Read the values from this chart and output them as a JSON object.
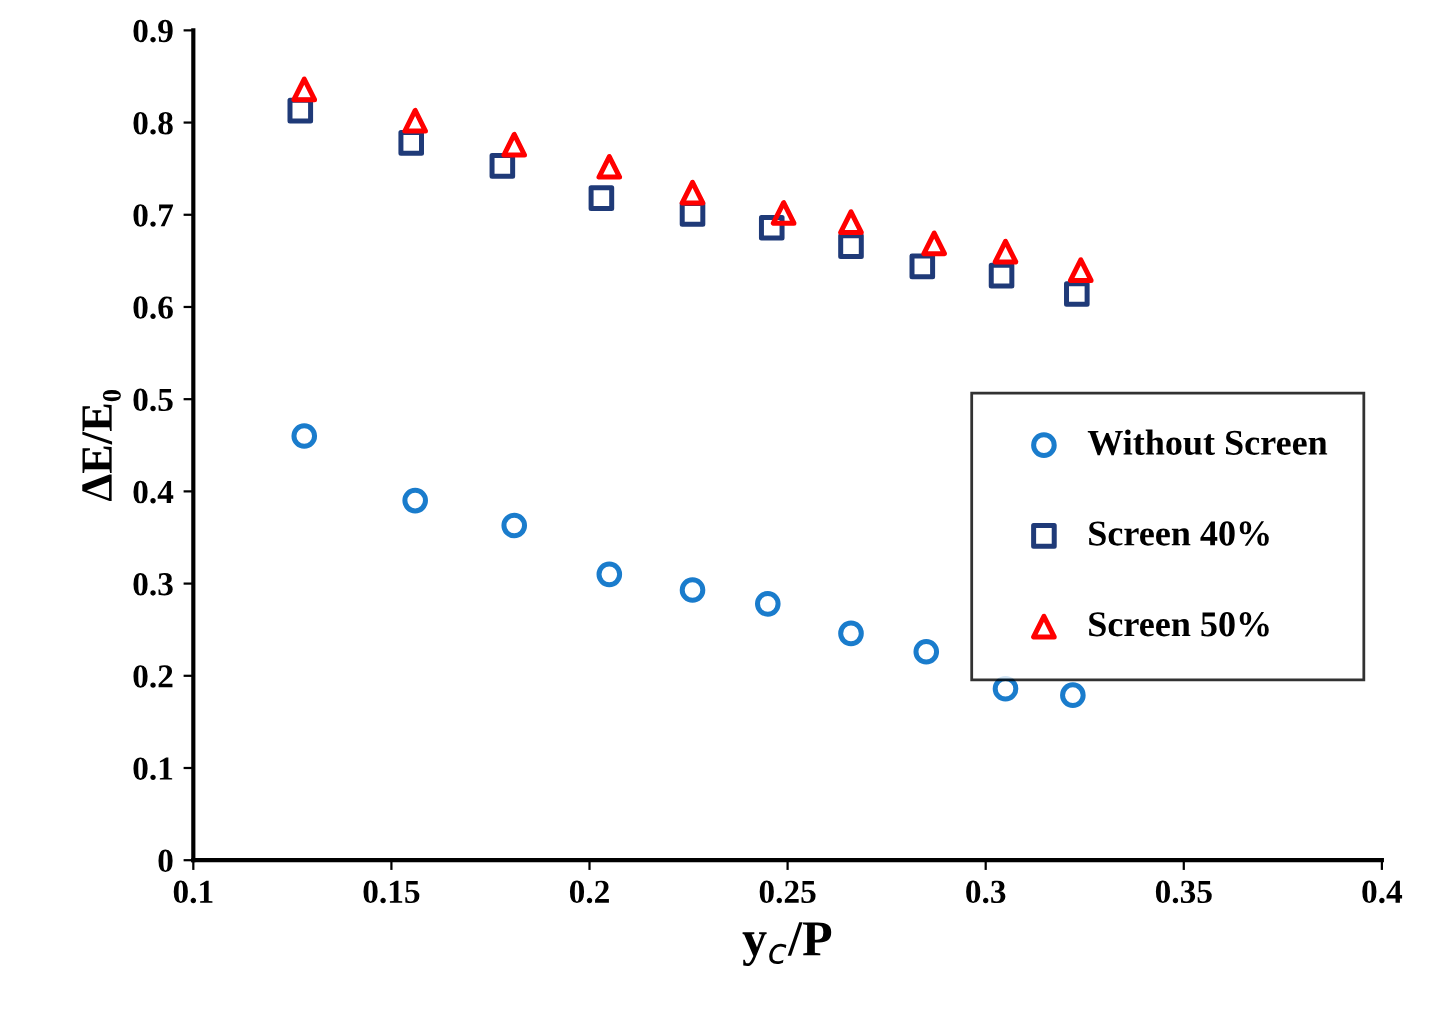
{
  "chart_data": {
    "type": "scatter",
    "xlabel": "y$_{c}$/P",
    "ylabel": "ΔE/E₀",
    "xlim": [
      0.1,
      0.4
    ],
    "xticks": [
      0.1,
      0.15,
      0.2,
      0.25,
      0.3,
      0.35,
      0.4
    ],
    "ylim": [
      0,
      0.9
    ],
    "yticks": [
      0,
      0.1,
      0.2,
      0.3,
      0.4,
      0.5,
      0.6,
      0.7,
      0.8,
      0.9
    ],
    "grid": false,
    "legend": "right",
    "series": [
      {
        "name": "Without Screen",
        "color": "#1a7ccc",
        "marker": "circle",
        "x": [
          0.128,
          0.156,
          0.181,
          0.205,
          0.226,
          0.245,
          0.266,
          0.285,
          0.305,
          0.322
        ],
        "values": [
          0.46,
          0.39,
          0.363,
          0.31,
          0.293,
          0.278,
          0.246,
          0.226,
          0.186,
          0.179
        ]
      },
      {
        "name": "Screen 40%",
        "color": "#1f3a78",
        "marker": "square",
        "x": [
          0.127,
          0.155,
          0.178,
          0.203,
          0.226,
          0.246,
          0.266,
          0.284,
          0.304,
          0.323
        ],
        "values": [
          0.813,
          0.778,
          0.753,
          0.718,
          0.701,
          0.686,
          0.666,
          0.644,
          0.634,
          0.614
        ]
      },
      {
        "name": "Screen 50%",
        "color": "#ff0000",
        "marker": "triangle",
        "x": [
          0.128,
          0.156,
          0.181,
          0.205,
          0.226,
          0.249,
          0.266,
          0.287,
          0.305,
          0.324
        ],
        "values": [
          0.836,
          0.802,
          0.776,
          0.752,
          0.724,
          0.702,
          0.692,
          0.669,
          0.66,
          0.64
        ]
      }
    ]
  }
}
